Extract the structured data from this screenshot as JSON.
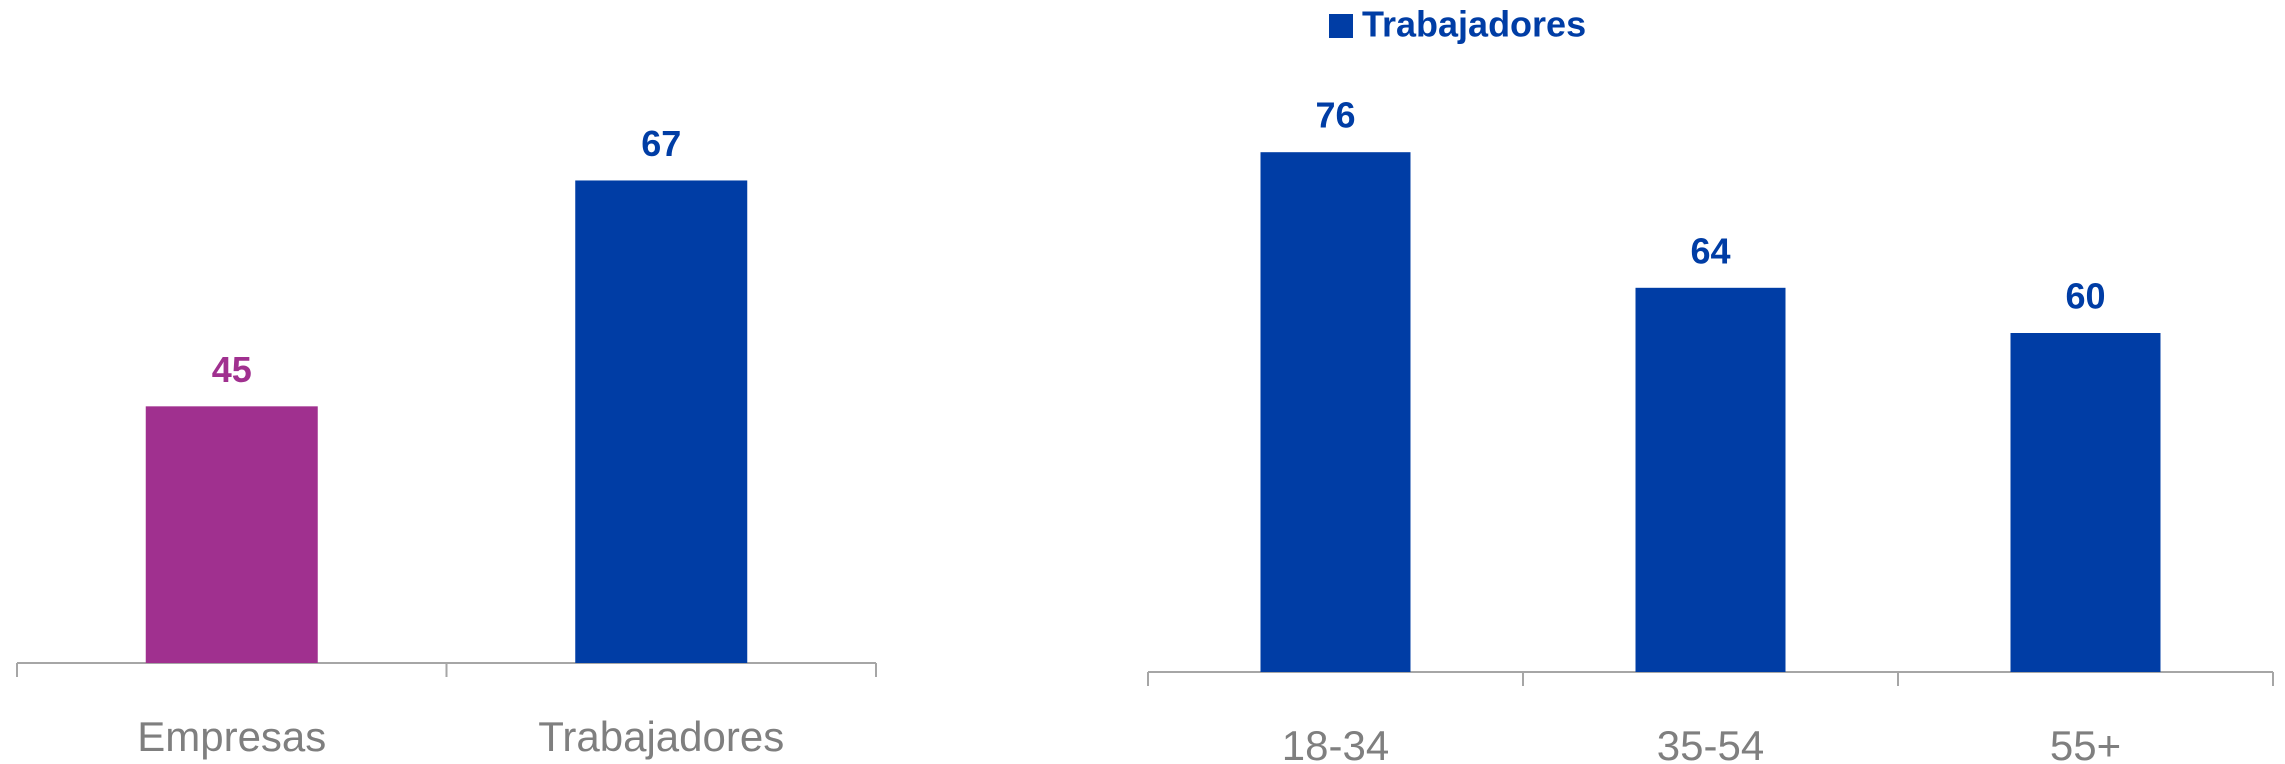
{
  "chart_data": [
    {
      "type": "bar",
      "categories": [
        "Empresas",
        "Trabajadores"
      ],
      "values": [
        45,
        67
      ],
      "colors": [
        "#a0308f",
        "#003da5"
      ],
      "ylim": [
        20,
        80
      ]
    },
    {
      "type": "bar",
      "categories": [
        "18-34",
        "35-54",
        "55+"
      ],
      "series": [
        {
          "name": "Trabajadores",
          "color": "#003da5",
          "values": [
            76,
            64,
            60
          ]
        }
      ],
      "ylim": [
        30,
        80
      ],
      "legend": "top"
    }
  ]
}
